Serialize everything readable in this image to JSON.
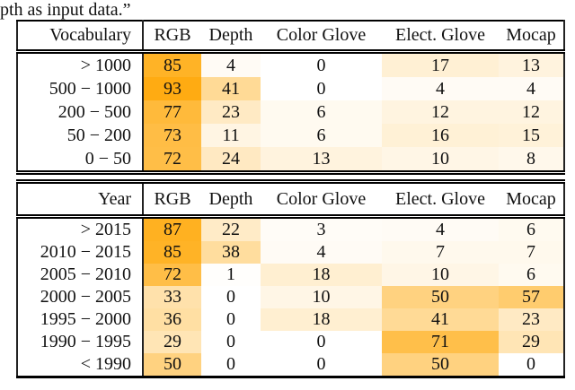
{
  "caption_fragment": "pth as input data.”",
  "colors": {
    "heat_base": "#FFA500",
    "rule": "#000000",
    "text": "#111111"
  },
  "tables": [
    {
      "name": "vocabulary-table",
      "row_header_label": "Vocabulary",
      "columns": [
        "RGB",
        "Depth",
        "Color Glove",
        "Elect. Glove",
        "Mocap"
      ],
      "rows": [
        {
          "label": "> 1000",
          "values": [
            85,
            4,
            0,
            17,
            13
          ]
        },
        {
          "label": "500 − 1000",
          "values": [
            93,
            41,
            0,
            4,
            4
          ]
        },
        {
          "label": "200 − 500",
          "values": [
            77,
            23,
            6,
            12,
            12
          ]
        },
        {
          "label": "50 − 200",
          "values": [
            73,
            11,
            6,
            16,
            15
          ]
        },
        {
          "label": "0 − 50",
          "values": [
            72,
            24,
            13,
            10,
            8
          ]
        }
      ]
    },
    {
      "name": "year-table",
      "row_header_label": "Year",
      "columns": [
        "RGB",
        "Depth",
        "Color Glove",
        "Elect. Glove",
        "Mocap"
      ],
      "rows": [
        {
          "label": "> 2015",
          "values": [
            87,
            22,
            3,
            4,
            6
          ]
        },
        {
          "label": "2010 − 2015",
          "values": [
            85,
            38,
            4,
            7,
            7
          ]
        },
        {
          "label": "2005 − 2010",
          "values": [
            72,
            1,
            18,
            10,
            6
          ]
        },
        {
          "label": "2000 − 2005",
          "values": [
            33,
            0,
            10,
            50,
            57
          ]
        },
        {
          "label": "1995 − 2000",
          "values": [
            36,
            0,
            18,
            41,
            23
          ]
        },
        {
          "label": "1990 − 1995",
          "values": [
            29,
            0,
            0,
            71,
            29
          ]
        },
        {
          "label": "< 1990",
          "values": [
            50,
            0,
            0,
            50,
            0
          ]
        }
      ]
    }
  ]
}
